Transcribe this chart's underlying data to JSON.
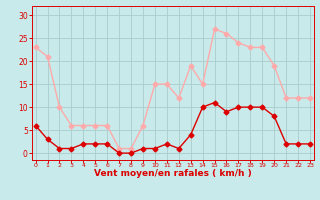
{
  "x": [
    0,
    1,
    2,
    3,
    4,
    5,
    6,
    7,
    8,
    9,
    10,
    11,
    12,
    13,
    14,
    15,
    16,
    17,
    18,
    19,
    20,
    21,
    22,
    23
  ],
  "vent_moyen": [
    6,
    3,
    1,
    1,
    2,
    2,
    2,
    0,
    0,
    1,
    1,
    2,
    1,
    4,
    10,
    11,
    9,
    10,
    10,
    10,
    8,
    2,
    2,
    2
  ],
  "rafales": [
    23,
    21,
    10,
    6,
    6,
    6,
    6,
    1,
    1,
    6,
    15,
    15,
    12,
    19,
    15,
    27,
    26,
    24,
    23,
    23,
    19,
    12,
    12,
    12
  ],
  "color_moyen": "#dd0000",
  "color_rafales": "#ffaaaa",
  "bg_color": "#c8eaea",
  "grid_color": "#aacccc",
  "xlabel": "Vent moyen/en rafales ( km/h )",
  "xlabel_color": "#dd0000",
  "yticks": [
    0,
    5,
    10,
    15,
    20,
    25,
    30
  ],
  "ylim": [
    -1.5,
    32
  ],
  "xlim": [
    -0.3,
    23.3
  ],
  "tick_color": "#dd0000",
  "marker": "D",
  "markersize": 2.5,
  "linewidth": 1.0
}
